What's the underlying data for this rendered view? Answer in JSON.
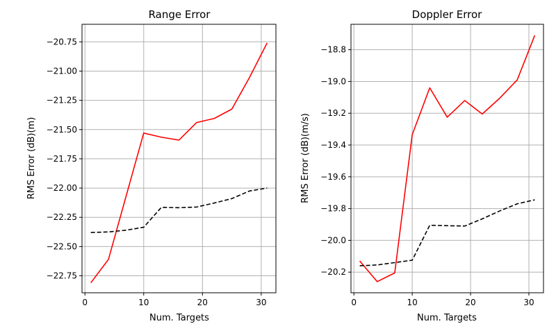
{
  "chart_data": [
    {
      "type": "line",
      "title": "Range Error",
      "xlabel": "Num. Targets",
      "ylabel": "RMS Error (dB)(m)",
      "xlim": [
        -0.5,
        32.5
      ],
      "ylim": [
        -22.895,
        -20.6
      ],
      "xticks": [
        0,
        10,
        20,
        30
      ],
      "yticks": [
        -22.75,
        -22.5,
        -22.25,
        -22.0,
        -21.75,
        -21.5,
        -21.25,
        -21.0,
        -20.75
      ],
      "ytick_labels": [
        "−22.75",
        "−22.50",
        "−22.25",
        "−22.00",
        "−21.75",
        "−21.50",
        "−21.25",
        "−21.00",
        "−20.75"
      ],
      "xtick_labels": [
        "0",
        "10",
        "20",
        "30"
      ],
      "grid": true,
      "x": [
        1,
        4,
        7,
        10,
        13,
        16,
        19,
        22,
        25,
        28,
        31
      ],
      "series": [
        {
          "color": "#ff0000",
          "style": "solid",
          "values": [
            -22.81,
            -22.61,
            -22.07,
            -21.53,
            -21.565,
            -21.59,
            -21.44,
            -21.405,
            -21.325,
            -21.055,
            -20.76
          ]
        },
        {
          "color": "#000000",
          "style": "dashed",
          "values": [
            -22.38,
            -22.375,
            -22.36,
            -22.335,
            -22.165,
            -22.168,
            -22.162,
            -22.128,
            -22.09,
            -22.025,
            -22.0
          ]
        }
      ]
    },
    {
      "type": "line",
      "title": "Doppler Error",
      "xlabel": "Num. Targets",
      "ylabel": "RMS Error (dB)(m/s)",
      "xlim": [
        -0.5,
        32.5
      ],
      "ylim": [
        -20.33,
        -18.64
      ],
      "xticks": [
        0,
        10,
        20,
        30
      ],
      "yticks": [
        -20.2,
        -20.0,
        -19.8,
        -19.6,
        -19.4,
        -19.2,
        -19.0,
        -18.8
      ],
      "ytick_labels": [
        "−20.2",
        "−20.0",
        "−19.8",
        "−19.6",
        "−19.4",
        "−19.2",
        "−19.0",
        "−18.8"
      ],
      "xtick_labels": [
        "0",
        "10",
        "20",
        "30"
      ],
      "grid": true,
      "x": [
        1,
        4,
        7,
        10,
        13,
        16,
        19,
        22,
        25,
        28,
        31
      ],
      "series": [
        {
          "color": "#ff0000",
          "style": "solid",
          "values": [
            -20.13,
            -20.26,
            -20.205,
            -19.335,
            -19.04,
            -19.225,
            -19.12,
            -19.205,
            -19.105,
            -18.99,
            -18.71
          ]
        },
        {
          "color": "#000000",
          "style": "dashed",
          "values": [
            -20.16,
            -20.155,
            -20.14,
            -20.125,
            -19.905,
            -19.908,
            -19.91,
            -19.865,
            -19.815,
            -19.77,
            -19.745
          ]
        }
      ]
    }
  ]
}
